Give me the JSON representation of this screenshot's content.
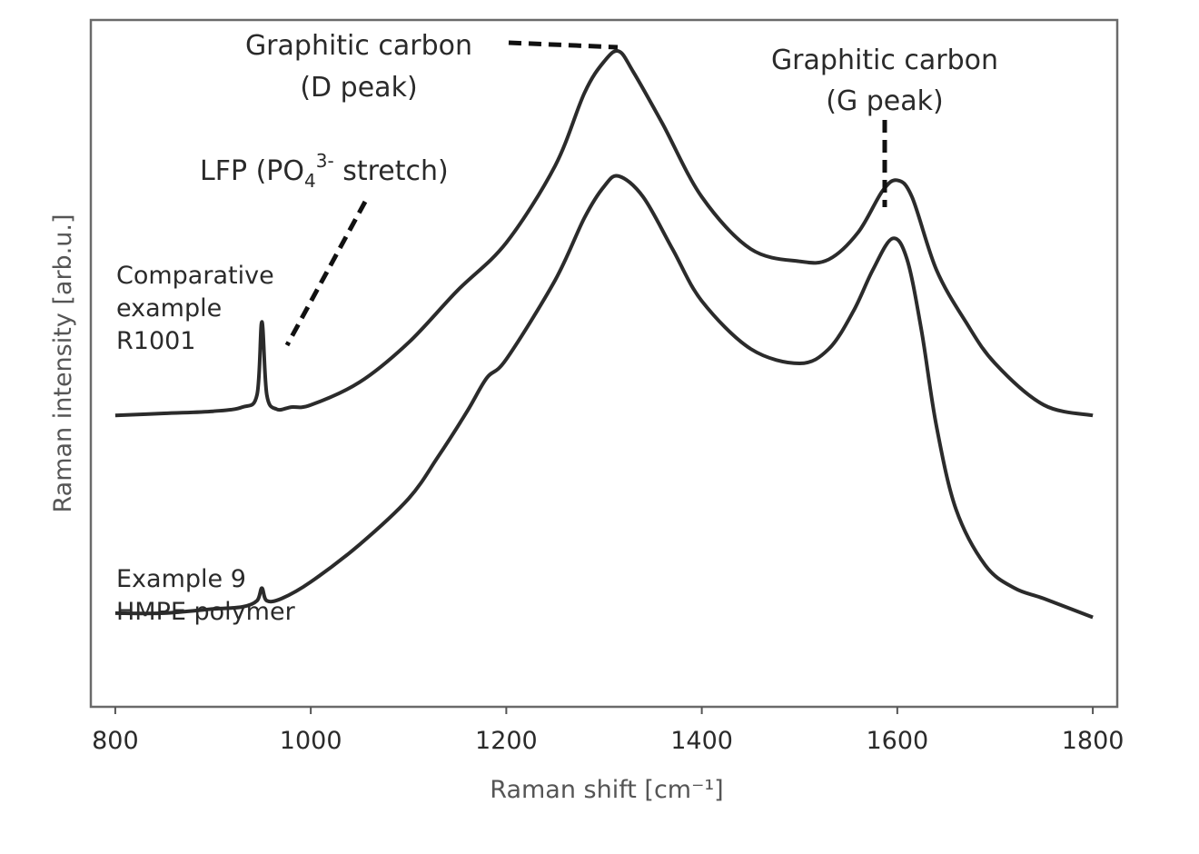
{
  "chart_data": {
    "type": "line",
    "xlabel": "Raman shift [cm⁻¹]",
    "ylabel": "Raman intensity [arb.u.]",
    "xlim": [
      775,
      1825
    ],
    "ylim": [
      0,
      3.3
    ],
    "x_ticks": [
      800,
      1000,
      1200,
      1400,
      1600,
      1800
    ],
    "y_ticks_shown": false,
    "grid": false,
    "series": [
      {
        "name": "Comparative example R1001",
        "label_lines": [
          "Comparative",
          "example",
          "R1001"
        ],
        "x": [
          800,
          850,
          900,
          930,
          945,
          950,
          955,
          965,
          980,
          1000,
          1050,
          1100,
          1150,
          1200,
          1250,
          1280,
          1300,
          1315,
          1330,
          1360,
          1400,
          1450,
          1500,
          1530,
          1560,
          1585,
          1600,
          1615,
          1640,
          1670,
          1700,
          1750,
          1800
        ],
        "y": [
          1.4,
          1.41,
          1.42,
          1.44,
          1.5,
          1.85,
          1.5,
          1.43,
          1.44,
          1.45,
          1.56,
          1.75,
          2.0,
          2.23,
          2.6,
          2.95,
          3.1,
          3.15,
          3.05,
          2.8,
          2.45,
          2.2,
          2.14,
          2.15,
          2.28,
          2.48,
          2.53,
          2.45,
          2.1,
          1.85,
          1.65,
          1.45,
          1.4
        ]
      },
      {
        "name": "Example 9 HMPE polymer",
        "label_lines": [
          "Example 9",
          "HMPE polymer"
        ],
        "x": [
          800,
          850,
          900,
          930,
          945,
          950,
          955,
          970,
          1000,
          1050,
          1100,
          1130,
          1160,
          1180,
          1200,
          1250,
          1280,
          1300,
          1315,
          1340,
          1370,
          1400,
          1450,
          1500,
          1530,
          1555,
          1575,
          1595,
          1610,
          1625,
          1640,
          1660,
          1690,
          1720,
          1750,
          1800
        ],
        "y": [
          0.45,
          0.45,
          0.47,
          0.48,
          0.51,
          0.57,
          0.51,
          0.52,
          0.6,
          0.78,
          1.0,
          1.2,
          1.42,
          1.58,
          1.67,
          2.05,
          2.35,
          2.5,
          2.55,
          2.45,
          2.2,
          1.95,
          1.72,
          1.65,
          1.72,
          1.9,
          2.1,
          2.25,
          2.15,
          1.8,
          1.35,
          0.95,
          0.68,
          0.57,
          0.52,
          0.43
        ]
      }
    ],
    "annotations": [
      {
        "id": "lfp",
        "text_main": "LFP (PO",
        "text_sub": "4",
        "text_sup": "3-",
        "text_tail": " stretch)"
      },
      {
        "id": "d_peak",
        "lines": [
          "Graphitic carbon",
          "(D peak)"
        ]
      },
      {
        "id": "g_peak",
        "lines": [
          "Graphitic carbon",
          "(G peak)"
        ]
      }
    ]
  }
}
